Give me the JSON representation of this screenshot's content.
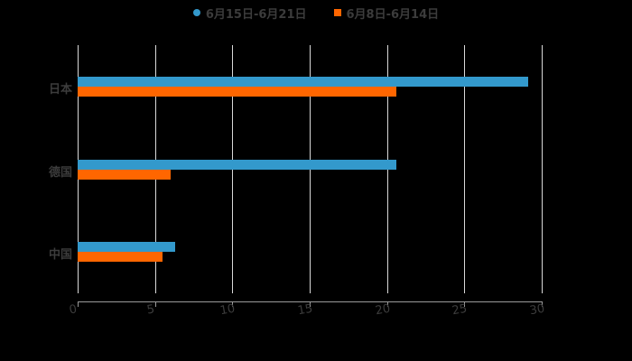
{
  "chart_data": {
    "type": "bar",
    "orientation": "horizontal",
    "title": "",
    "xlabel": "",
    "ylabel": "",
    "categories": [
      "日本",
      "德国",
      "中国"
    ],
    "series": [
      {
        "name": "6月15日-6月21日",
        "color": "#3399cc",
        "values": [
          29.1,
          20.6,
          6.3
        ]
      },
      {
        "name": "6月8日-6月14日",
        "color": "#ff6600",
        "values": [
          20.6,
          6.0,
          5.5
        ]
      }
    ],
    "xlim": [
      0,
      30
    ],
    "x_ticks": [
      "0",
      "5",
      "10",
      "15",
      "20",
      "25",
      "30"
    ],
    "grid": true,
    "legend_position": "top"
  },
  "legend": {
    "items": [
      {
        "label": "6月15日-6月21日",
        "color": "#3399cc",
        "marker": "circle"
      },
      {
        "label": "6月8日-6月14日",
        "color": "#ff6600",
        "marker": "square"
      }
    ]
  },
  "theme": {
    "background": "#000000",
    "text": "#3c3c3c",
    "grid": "#d9d9d9"
  }
}
